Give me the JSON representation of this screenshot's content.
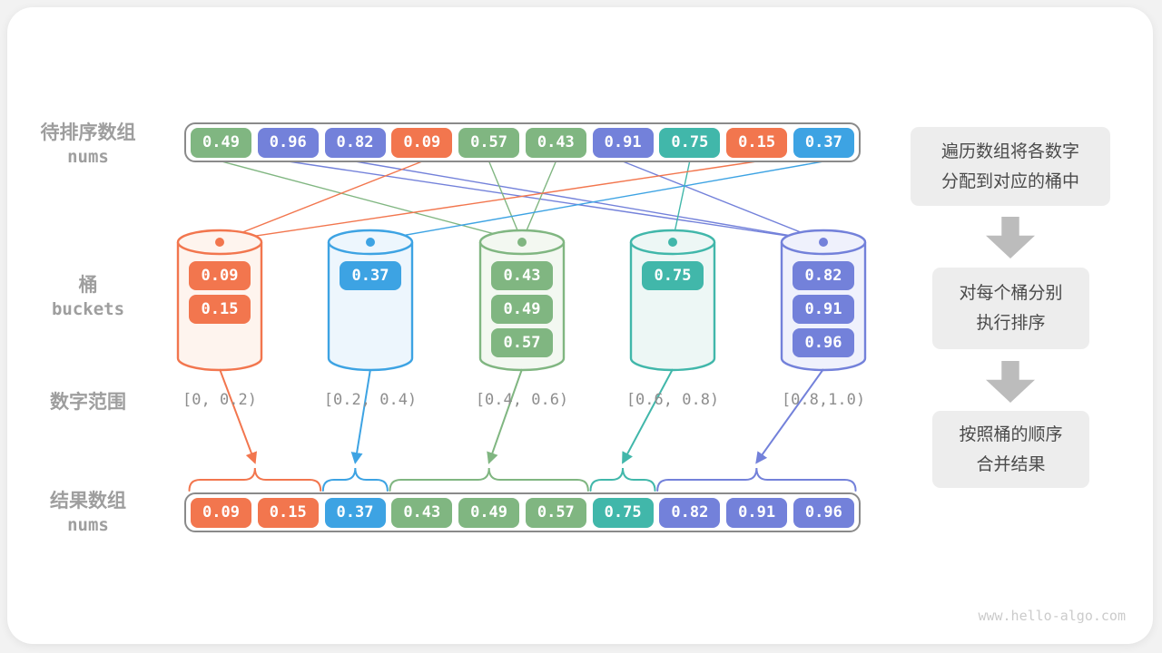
{
  "palette": {
    "green": "#80b681",
    "purple": "#7381da",
    "orange": "#f2764e",
    "teal": "#41b7aa",
    "blue": "#3da3e3"
  },
  "bucket_fills": {
    "green": "#f3f8f1",
    "purple": "#eff1fc",
    "orange": "#fef4ee",
    "teal": "#edf7f5",
    "blue": "#edf6fd"
  },
  "ui_colors": {
    "container_border": "#8a8a8a",
    "label_gray": "#9e9e9e",
    "range_gray": "#8e8e8e",
    "step_bg": "#ededed",
    "step_text": "#4a4a4a",
    "block_arrow_gray": "#bcbcbc",
    "watermark_gray": "#cbcbcb",
    "page_bg": "#f2f2f2",
    "card_bg": "#ffffff"
  },
  "source_array": {
    "label": "待排序数组",
    "sublabel": "nums",
    "cells": [
      {
        "value": "0.49",
        "color": "green"
      },
      {
        "value": "0.96",
        "color": "purple"
      },
      {
        "value": "0.82",
        "color": "purple"
      },
      {
        "value": "0.09",
        "color": "orange"
      },
      {
        "value": "0.57",
        "color": "green"
      },
      {
        "value": "0.43",
        "color": "green"
      },
      {
        "value": "0.91",
        "color": "purple"
      },
      {
        "value": "0.75",
        "color": "teal"
      },
      {
        "value": "0.15",
        "color": "orange"
      },
      {
        "value": "0.37",
        "color": "blue"
      }
    ]
  },
  "buckets": {
    "label": "桶",
    "sublabel": "buckets",
    "range_row_label": "数字范围",
    "items": [
      {
        "color": "orange",
        "values": [
          "0.09",
          "0.15"
        ],
        "range": "[0, 0.2)"
      },
      {
        "color": "blue",
        "values": [
          "0.37"
        ],
        "range": "[0.2, 0.4)"
      },
      {
        "color": "green",
        "values": [
          "0.43",
          "0.49",
          "0.57"
        ],
        "range": "[0.4, 0.6)"
      },
      {
        "color": "teal",
        "values": [
          "0.75"
        ],
        "range": "[0.6, 0.8)"
      },
      {
        "color": "purple",
        "values": [
          "0.82",
          "0.91",
          "0.96"
        ],
        "range": "[0.8,1.0)"
      }
    ]
  },
  "assignments": [
    {
      "cell": 0,
      "bucket": 2
    },
    {
      "cell": 1,
      "bucket": 4
    },
    {
      "cell": 2,
      "bucket": 4
    },
    {
      "cell": 3,
      "bucket": 0
    },
    {
      "cell": 4,
      "bucket": 2
    },
    {
      "cell": 5,
      "bucket": 2
    },
    {
      "cell": 6,
      "bucket": 4
    },
    {
      "cell": 7,
      "bucket": 3
    },
    {
      "cell": 8,
      "bucket": 0
    },
    {
      "cell": 9,
      "bucket": 1
    }
  ],
  "result_array": {
    "label": "结果数组",
    "sublabel": "nums",
    "cells": [
      {
        "value": "0.09",
        "color": "orange"
      },
      {
        "value": "0.15",
        "color": "orange"
      },
      {
        "value": "0.37",
        "color": "blue"
      },
      {
        "value": "0.43",
        "color": "green"
      },
      {
        "value": "0.49",
        "color": "green"
      },
      {
        "value": "0.57",
        "color": "green"
      },
      {
        "value": "0.75",
        "color": "teal"
      },
      {
        "value": "0.82",
        "color": "purple"
      },
      {
        "value": "0.91",
        "color": "purple"
      },
      {
        "value": "0.96",
        "color": "purple"
      }
    ],
    "groups": [
      {
        "bucket": 0,
        "from": 0,
        "to": 1
      },
      {
        "bucket": 1,
        "from": 2,
        "to": 2
      },
      {
        "bucket": 2,
        "from": 3,
        "to": 5
      },
      {
        "bucket": 3,
        "from": 6,
        "to": 6
      },
      {
        "bucket": 4,
        "from": 7,
        "to": 9
      }
    ]
  },
  "steps": [
    {
      "lines": [
        "遍历数组将各数字",
        "分配到对应的桶中"
      ]
    },
    {
      "lines": [
        "对每个桶分别",
        "执行排序"
      ]
    },
    {
      "lines": [
        "按照桶的顺序",
        "合并结果"
      ]
    }
  ],
  "watermark": "www.hello-algo.com"
}
